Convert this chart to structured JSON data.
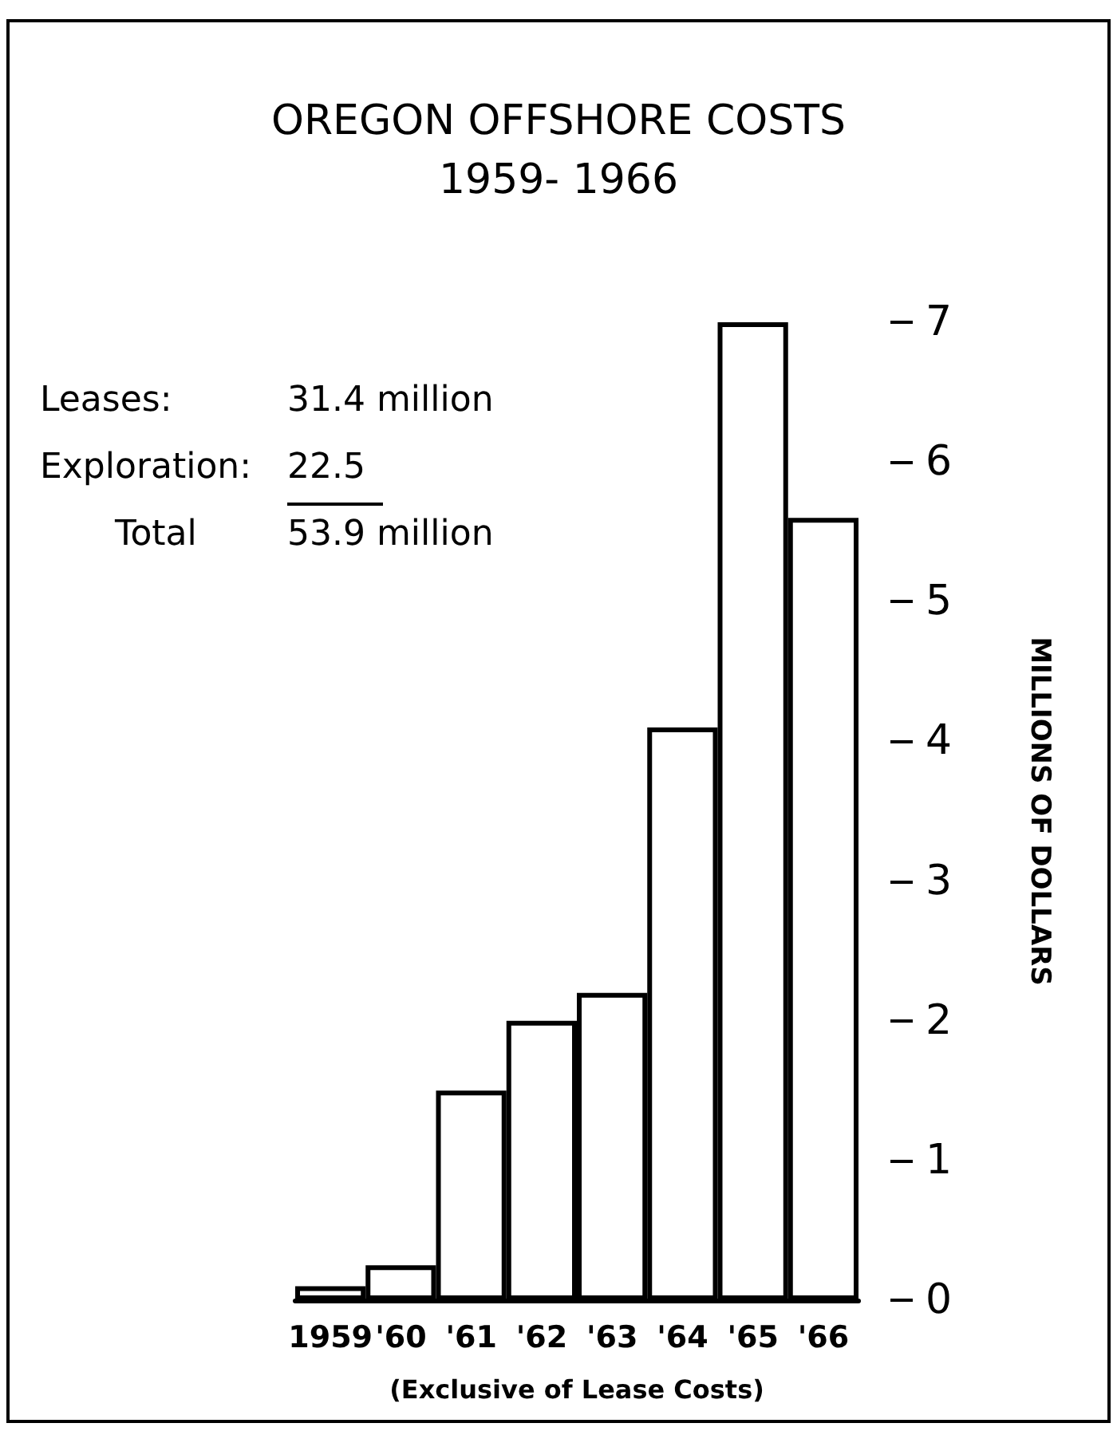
{
  "chart_data": {
    "type": "bar",
    "title": "OREGON OFFSHORE COSTS",
    "subtitle": "1959- 1966",
    "xlabel": "(Exclusive of Lease Costs)",
    "ylabel": "MILLIONS OF DOLLARS",
    "categories": [
      "1959",
      "'60",
      "'61",
      "'62",
      "'63",
      "'64",
      "'65",
      "'66"
    ],
    "values": [
      0.1,
      0.25,
      1.5,
      2.0,
      2.2,
      4.1,
      7.0,
      5.6
    ],
    "color": "#ffffff",
    "ylim": [
      0,
      7
    ],
    "yticks": [
      0,
      1,
      2,
      3,
      4,
      5,
      6,
      7
    ],
    "annotations": [
      "Leases:",
      "31.4 million",
      "Exploration:",
      "22.5",
      "Total",
      "53.9 million"
    ]
  }
}
